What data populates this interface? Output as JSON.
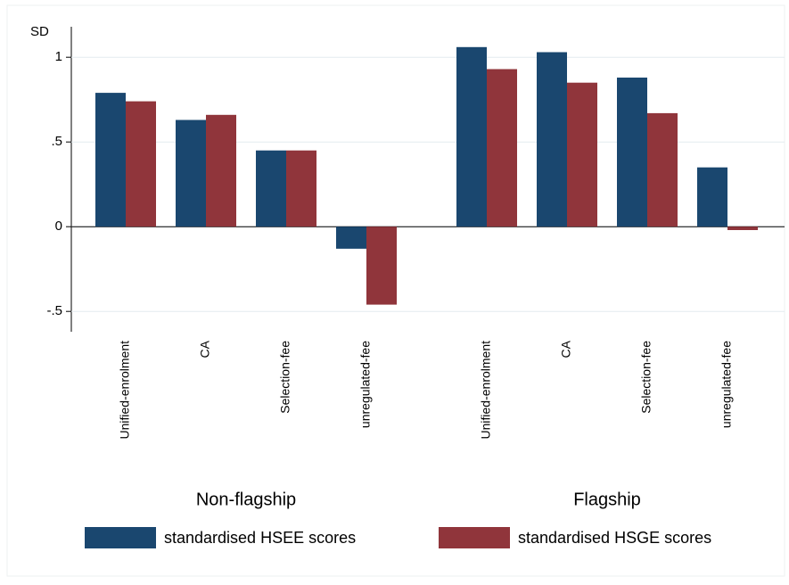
{
  "chart_data": {
    "type": "grouped-bar",
    "y_label": "SD",
    "groups": [
      {
        "label": "Non-flagship",
        "categories": [
          "Unified-enrolment",
          "CA",
          "Selection-fee",
          "unregulated-fee"
        ]
      },
      {
        "label": "Flagship",
        "categories": [
          "Unified-enrolment",
          "CA",
          "Selection-fee",
          "unregulated-fee"
        ]
      }
    ],
    "series": [
      {
        "name": "standardised HSEE scores",
        "color": "#1a476f",
        "values": [
          [
            0.79,
            0.63,
            0.45,
            -0.13
          ],
          [
            1.06,
            1.03,
            0.88,
            0.35
          ]
        ]
      },
      {
        "name": "standardised HSGE scores",
        "color": "#90353b",
        "values": [
          [
            0.74,
            0.66,
            0.45,
            -0.46
          ],
          [
            0.93,
            0.85,
            0.67,
            -0.02
          ]
        ]
      }
    ],
    "ylim": [
      -0.62,
      1.18
    ],
    "yticks": [
      {
        "value": -0.5,
        "label": "-.5"
      },
      0,
      {
        "value": 0.5,
        "label": ".5"
      },
      1
    ],
    "grid": true
  }
}
